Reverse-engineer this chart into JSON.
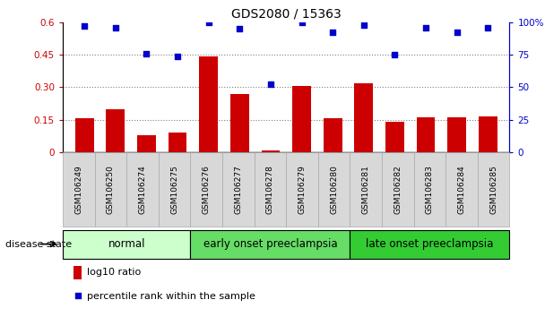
{
  "title": "GDS2080 / 15363",
  "samples": [
    "GSM106249",
    "GSM106250",
    "GSM106274",
    "GSM106275",
    "GSM106276",
    "GSM106277",
    "GSM106278",
    "GSM106279",
    "GSM106280",
    "GSM106281",
    "GSM106282",
    "GSM106283",
    "GSM106284",
    "GSM106285"
  ],
  "log10_ratio": [
    0.155,
    0.2,
    0.08,
    0.09,
    0.44,
    0.27,
    0.01,
    0.305,
    0.155,
    0.32,
    0.14,
    0.16,
    0.16,
    0.165
  ],
  "percentile_rank": [
    97,
    96,
    76,
    74,
    100,
    95,
    52,
    100,
    92,
    98,
    75,
    96,
    92,
    96
  ],
  "bar_color": "#cc0000",
  "dot_color": "#0000cc",
  "ylim_left": [
    0,
    0.6
  ],
  "ylim_right": [
    0,
    100
  ],
  "yticks_left": [
    0,
    0.15,
    0.3,
    0.45,
    0.6
  ],
  "yticks_right": [
    0,
    25,
    50,
    75,
    100
  ],
  "ytick_labels_left": [
    "0",
    "0.15",
    "0.30",
    "0.45",
    "0.6"
  ],
  "ytick_labels_right": [
    "0",
    "25",
    "50",
    "75",
    "100%"
  ],
  "hlines": [
    0.15,
    0.3,
    0.45
  ],
  "groups": [
    {
      "label": "normal",
      "start": 0,
      "end": 4,
      "color": "#ccffcc"
    },
    {
      "label": "early onset preeclampsia",
      "start": 4,
      "end": 9,
      "color": "#66dd66"
    },
    {
      "label": "late onset preeclampsia",
      "start": 9,
      "end": 14,
      "color": "#33cc33"
    }
  ],
  "disease_state_label": "disease state",
  "legend_bar_label": "log10 ratio",
  "legend_dot_label": "percentile rank within the sample",
  "left_tick_color": "#cc0000",
  "right_tick_color": "#0000cc",
  "title_fontsize": 10,
  "tick_fontsize": 7.5,
  "label_fontsize": 8,
  "xtick_fontsize": 6.5,
  "group_label_fontsize": 8.5,
  "xtick_bg_color": "#d8d8d8",
  "xtick_border_color": "#aaaaaa",
  "bar_width": 0.6
}
